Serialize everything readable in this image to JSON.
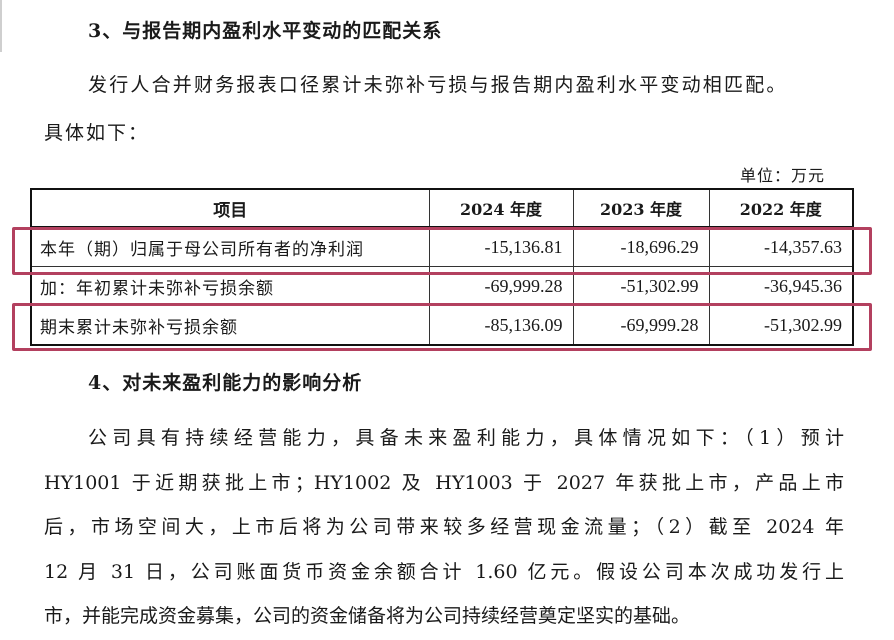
{
  "section3": {
    "heading": "3、与报告期内盈利水平变动的匹配关系",
    "intro_line1": "发行人合并财务报表口径累计未弥补亏损与报告期内盈利水平变动相匹配。",
    "intro_line2": "具体如下："
  },
  "unit": "单位：万元",
  "table": {
    "headers": [
      "项目",
      "2024 年度",
      "2023 年度",
      "2022 年度"
    ],
    "rows": [
      {
        "label": "本年（期）归属于母公司所有者的净利润",
        "values": [
          "-15,136.81",
          "-18,696.29",
          "-14,357.63"
        ],
        "highlighted": true
      },
      {
        "label": "加：年初累计未弥补亏损余额",
        "values": [
          "-69,999.28",
          "-51,302.99",
          "-36,945.36"
        ],
        "highlighted": false
      },
      {
        "label": "期末累计未弥补亏损余额",
        "values": [
          "-85,136.09",
          "-69,999.28",
          "-51,302.99"
        ],
        "highlighted": true
      }
    ]
  },
  "highlight_color": "#b3405f",
  "section4": {
    "heading": "4、对未来盈利能力的影响分析",
    "lines": [
      "公司具有持续经营能力，具备未来盈利能力，具体情况如下：（1）预计",
      "HY1001 于近期获批上市；HY1002 及 HY1003 于 2027 年获批上市，产品上市",
      "后，市场空间大，上市后将为公司带来较多经营现金流量；（2）截至 2024 年",
      "12 月 31 日，公司账面货币资金余额合计 1.60 亿元。假设公司本次成功发行上",
      "市，并能完成资金募集，公司的资金储备将为公司持续经营奠定坚实的基础。"
    ]
  }
}
